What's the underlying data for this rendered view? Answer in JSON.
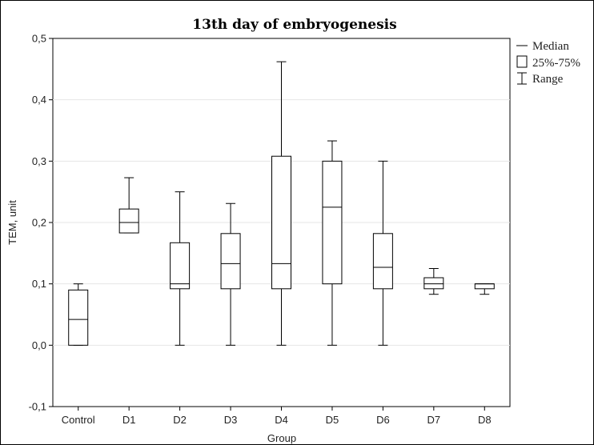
{
  "chart_data": {
    "type": "boxplot",
    "title": "13th day of embryogenesis",
    "xlabel": "Group",
    "ylabel": "TEM, unit",
    "ylim": [
      -0.1,
      0.5
    ],
    "yticks": [
      "-0,1",
      "0,0",
      "0,1",
      "0,2",
      "0,3",
      "0,4",
      "0,5"
    ],
    "ytick_values": [
      -0.1,
      0.0,
      0.1,
      0.2,
      0.3,
      0.4,
      0.5
    ],
    "grid": true,
    "legend_position": "right",
    "legend": [
      "Median",
      "25%-75%",
      "Range"
    ],
    "categories": [
      "Control",
      "D1",
      "D2",
      "D3",
      "D4",
      "D5",
      "D6",
      "D7",
      "D8"
    ],
    "boxes": [
      {
        "min": 0.0,
        "q1": 0.0,
        "median": 0.042,
        "q3": 0.09,
        "max": 0.1
      },
      {
        "min": 0.183,
        "q1": 0.183,
        "median": 0.2,
        "q3": 0.222,
        "max": 0.273
      },
      {
        "min": 0.0,
        "q1": 0.092,
        "median": 0.1,
        "q3": 0.167,
        "max": 0.25
      },
      {
        "min": 0.0,
        "q1": 0.092,
        "median": 0.133,
        "q3": 0.182,
        "max": 0.231
      },
      {
        "min": 0.0,
        "q1": 0.092,
        "median": 0.133,
        "q3": 0.308,
        "max": 0.462
      },
      {
        "min": 0.0,
        "q1": 0.1,
        "median": 0.225,
        "q3": 0.3,
        "max": 0.333
      },
      {
        "min": 0.0,
        "q1": 0.092,
        "median": 0.127,
        "q3": 0.182,
        "max": 0.3
      },
      {
        "min": 0.083,
        "q1": 0.092,
        "median": 0.1,
        "q3": 0.11,
        "max": 0.125
      },
      {
        "min": 0.083,
        "q1": 0.092,
        "median": 0.1,
        "q3": 0.1,
        "max": 0.1
      }
    ]
  }
}
